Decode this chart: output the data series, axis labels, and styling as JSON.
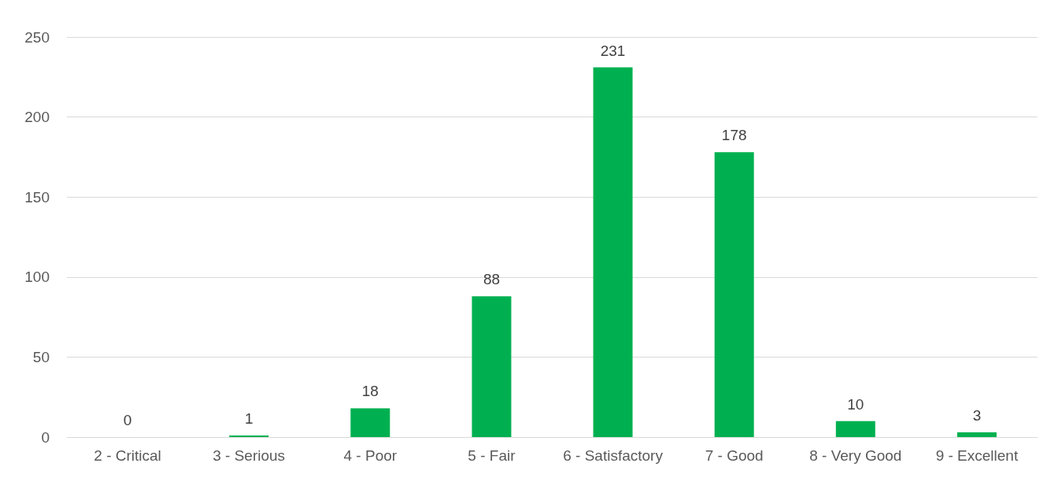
{
  "chart_data": {
    "type": "bar",
    "categories": [
      "2 - Critical",
      "3 - Serious",
      "4 - Poor",
      "5 - Fair",
      "6 - Satisfactory",
      "7 - Good",
      "8 - Very Good",
      "9 - Excellent"
    ],
    "values": [
      0,
      1,
      18,
      88,
      231,
      178,
      10,
      3
    ],
    "color": "#00b050",
    "ylim": [
      0,
      250
    ],
    "yticks": [
      0,
      50,
      100,
      150,
      200,
      250
    ],
    "grid": "y",
    "data_labels": true
  }
}
